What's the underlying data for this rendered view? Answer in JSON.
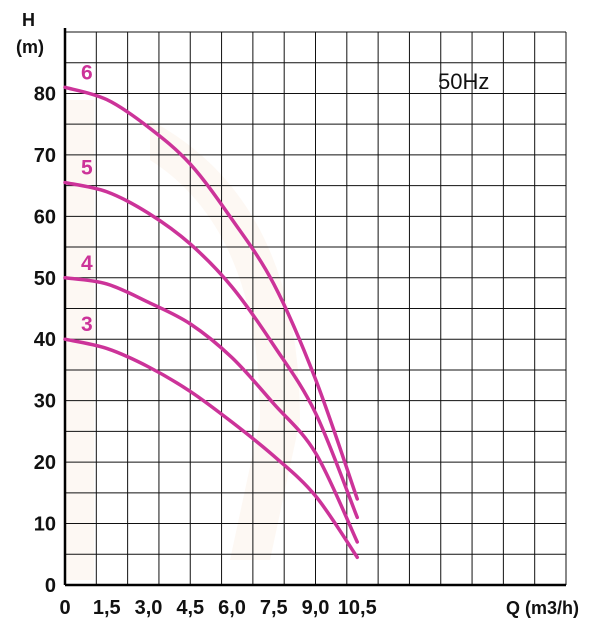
{
  "chart_data": {
    "type": "line",
    "ylabel": "H",
    "yunit": "(m)",
    "xlabel": "Q (m3/h)",
    "frequency_label": "50Hz",
    "xlim": [
      0,
      18
    ],
    "ylim": [
      0,
      90
    ],
    "grid": true,
    "x_ticks": [
      {
        "value": 0,
        "label": "0"
      },
      {
        "value": 1.5,
        "label": "1,5"
      },
      {
        "value": 3.0,
        "label": "3,0"
      },
      {
        "value": 4.5,
        "label": "4,5"
      },
      {
        "value": 6.0,
        "label": "6,0"
      },
      {
        "value": 7.5,
        "label": "7,5"
      },
      {
        "value": 9.0,
        "label": "9,0"
      },
      {
        "value": 10.5,
        "label": "10,5"
      }
    ],
    "y_ticks": [
      {
        "value": 0,
        "label": "0"
      },
      {
        "value": 10,
        "label": "10"
      },
      {
        "value": 20,
        "label": "20"
      },
      {
        "value": 30,
        "label": "30"
      },
      {
        "value": 40,
        "label": "40"
      },
      {
        "value": 50,
        "label": "50"
      },
      {
        "value": 60,
        "label": "60"
      },
      {
        "value": 70,
        "label": "70"
      },
      {
        "value": 80,
        "label": "80"
      }
    ],
    "line_color": "#cc3399",
    "series": [
      {
        "name": "6",
        "x": [
          0,
          1.5,
          3.0,
          4.5,
          6.0,
          7.5,
          9.0,
          10.5
        ],
        "y": [
          81,
          79,
          74.5,
          68.5,
          59.5,
          49,
          33.5,
          14
        ]
      },
      {
        "name": "5",
        "x": [
          0,
          1.5,
          3.0,
          4.5,
          6.0,
          7.5,
          9.0,
          10.5
        ],
        "y": [
          65.5,
          64,
          60.5,
          55.5,
          48.5,
          39,
          28,
          11
        ]
      },
      {
        "name": "4",
        "x": [
          0,
          1.5,
          3.0,
          4.5,
          6.0,
          7.5,
          9.0,
          10.5
        ],
        "y": [
          50,
          49,
          46,
          42.5,
          37,
          29.5,
          21.5,
          7
        ]
      },
      {
        "name": "3",
        "x": [
          0,
          1.5,
          3.0,
          4.5,
          6.0,
          7.5,
          9.0,
          10.5
        ],
        "y": [
          40,
          38.5,
          35.5,
          31.5,
          26.5,
          21,
          14.5,
          4.5
        ]
      }
    ]
  }
}
